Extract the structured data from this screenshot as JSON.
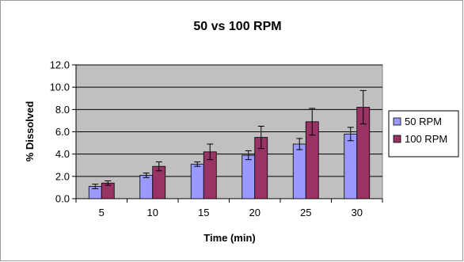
{
  "chart_data": {
    "type": "bar",
    "title": "50 vs 100 RPM",
    "xlabel": "Time (min)",
    "ylabel": "% Dissolved",
    "categories": [
      "5",
      "10",
      "15",
      "20",
      "25",
      "30"
    ],
    "series": [
      {
        "name": "50 RPM",
        "color": "#9999ff",
        "values": [
          1.1,
          2.1,
          3.1,
          3.9,
          4.9,
          5.8
        ],
        "errors": [
          0.2,
          0.2,
          0.2,
          0.4,
          0.5,
          0.6
        ]
      },
      {
        "name": "100 RPM",
        "color": "#993366",
        "values": [
          1.4,
          2.9,
          4.2,
          5.5,
          6.9,
          8.2
        ],
        "errors": [
          0.2,
          0.4,
          0.7,
          1.0,
          1.2,
          1.5
        ]
      }
    ],
    "ylim": [
      0,
      12
    ],
    "yticks": [
      "0.0",
      "2.0",
      "4.0",
      "6.0",
      "8.0",
      "10.0",
      "12.0"
    ],
    "grid": true,
    "plot_background": "#c0c0c0",
    "legend_position": "right"
  }
}
